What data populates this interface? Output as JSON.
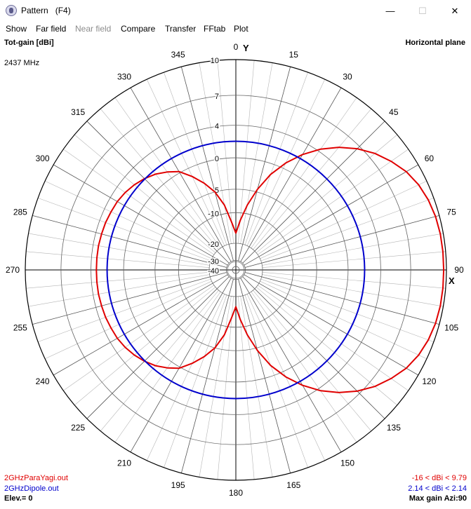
{
  "window": {
    "title": "Pattern   (F4)",
    "minimize_glyph": "—",
    "maximize_glyph": "☐",
    "close_glyph": "✕"
  },
  "menu": {
    "items": [
      {
        "label": "Show",
        "enabled": true
      },
      {
        "label": "Far field",
        "enabled": true
      },
      {
        "label": "Near field",
        "enabled": false
      },
      {
        "label": "Compare",
        "enabled": true
      },
      {
        "label": "Transfer",
        "enabled": true
      },
      {
        "label": "FFtab",
        "enabled": true
      },
      {
        "label": "Plot",
        "enabled": true
      }
    ]
  },
  "plot": {
    "quantity": "Tot-gain [dBi]",
    "plane": "Horizontal plane",
    "frequency": "2437 MHz",
    "axis_y_label": "Y",
    "axis_x_label": "X",
    "elevation": "Elev.= 0",
    "max_gain": "Max gain Azi:90",
    "legend": [
      {
        "file": "2GHzParaYagi.out",
        "range": "-16 < dBi < 9.79",
        "color": "#e00000"
      },
      {
        "file": "2GHzDipole.out",
        "range": "2.14 < dBi < 2.14",
        "color": "#0000cc"
      }
    ]
  },
  "chart_data": {
    "type": "polar",
    "angle_convention": "azimuth in degrees, 0 at top, clockwise",
    "angle_ticks": [
      "0",
      "15",
      "30",
      "45",
      "60",
      "75",
      "90",
      "105",
      "120",
      "135",
      "150",
      "165",
      "180",
      "195",
      "210",
      "225",
      "240",
      "255",
      "270",
      "285",
      "300",
      "315",
      "330",
      "345"
    ],
    "radial_ticks_dBi": [
      10,
      7,
      4,
      0,
      -5,
      -10,
      -20,
      -30,
      -40
    ],
    "radial_range_dBi": [
      -40,
      10
    ],
    "series": [
      {
        "name": "2GHzParaYagi.out",
        "color": "#e00000",
        "azimuth_deg": [
          0,
          5,
          10,
          15,
          20,
          25,
          30,
          35,
          40,
          45,
          50,
          55,
          60,
          65,
          70,
          75,
          80,
          85,
          90,
          95,
          100,
          105,
          110,
          115,
          120,
          125,
          130,
          135,
          140,
          145,
          150,
          155,
          160,
          165,
          170,
          175,
          180,
          185,
          190,
          195,
          200,
          205,
          210,
          215,
          220,
          225,
          230,
          235,
          240,
          245,
          250,
          255,
          260,
          265,
          270,
          275,
          280,
          285,
          290,
          295,
          300,
          305,
          310,
          315,
          320,
          325,
          330,
          335,
          340,
          345,
          350,
          355
        ],
        "gain_dBi": [
          -16,
          -12,
          -8,
          -4.5,
          -1.5,
          0.8,
          2.7,
          4.3,
          5.6,
          6.7,
          7.6,
          8.3,
          8.9,
          9.3,
          9.55,
          9.7,
          9.77,
          9.79,
          9.79,
          9.79,
          9.77,
          9.7,
          9.55,
          9.3,
          8.9,
          8.3,
          7.6,
          6.7,
          5.6,
          4.3,
          2.7,
          0.8,
          -1.5,
          -4.5,
          -8,
          -12,
          -16,
          -12.5,
          -8,
          -5,
          -3,
          -1.3,
          0.2,
          1,
          1.7,
          2.2,
          2.6,
          2.9,
          3.1,
          3.2,
          3.3,
          3.35,
          3.4,
          3.4,
          3.4,
          3.4,
          3.4,
          3.35,
          3.3,
          3.2,
          3.1,
          2.9,
          2.6,
          2.2,
          1.7,
          1,
          0.2,
          -1.3,
          -3,
          -5,
          -8,
          -12.5
        ]
      },
      {
        "name": "2GHzDipole.out",
        "color": "#0000cc",
        "azimuth_deg": [
          0,
          90,
          180,
          270
        ],
        "gain_dBi": [
          2.14,
          2.14,
          2.14,
          2.14
        ]
      }
    ]
  }
}
